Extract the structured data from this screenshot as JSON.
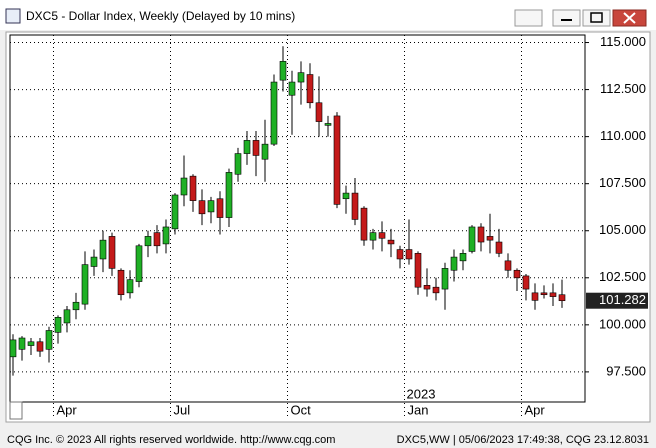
{
  "window": {
    "title": "DXC5 - Dollar Index, Weekly (Delayed by 10 mins)",
    "footer_left": "CQG Inc. © 2023 All rights reserved worldwide. http://www.cqg.com",
    "footer_right": "DXC5,WW | 05/06/2023 17:49:38, CQG 23.12.8031"
  },
  "chart_data": {
    "type": "candlestick",
    "year_label": "2023",
    "categories": [
      null,
      null,
      null,
      null,
      null,
      "Apr",
      null,
      null,
      null,
      null,
      null,
      null,
      null,
      null,
      null,
      null,
      null,
      null,
      "Jul",
      null,
      null,
      null,
      null,
      null,
      null,
      null,
      null,
      null,
      null,
      null,
      null,
      "Oct",
      null,
      null,
      null,
      null,
      null,
      null,
      null,
      null,
      null,
      null,
      null,
      null,
      "Jan",
      null,
      null,
      null,
      null,
      null,
      null,
      null,
      null,
      null,
      null,
      null,
      null,
      "Apr",
      null,
      null,
      null,
      null
    ],
    "open": [
      98.3,
      98.7,
      98.9,
      99.1,
      98.7,
      99.6,
      100.1,
      100.8,
      101.1,
      103.1,
      103.5,
      104.7,
      102.9,
      101.7,
      102.3,
      104.2,
      104.9,
      104.3,
      105.1,
      106.9,
      107.9,
      106.6,
      106.0,
      106.7,
      105.7,
      108.0,
      109.1,
      109.8,
      108.8,
      109.6,
      113.0,
      112.2,
      112.9,
      113.3,
      111.8,
      110.6,
      111.1,
      106.7,
      107.0,
      106.2,
      104.5,
      104.9,
      104.5,
      104.0,
      104.0,
      103.8,
      102.1,
      102.0,
      101.9,
      102.9,
      103.4,
      103.9,
      105.2,
      104.7,
      104.4,
      103.4,
      102.9,
      102.6,
      101.7,
      101.7,
      101.7,
      101.6
    ],
    "high": [
      99.5,
      99.4,
      99.3,
      99.3,
      99.9,
      100.5,
      101.0,
      101.7,
      103.9,
      104.0,
      105.0,
      104.9,
      103.0,
      102.9,
      104.3,
      105.0,
      105.3,
      105.6,
      107.0,
      109.0,
      108.0,
      107.2,
      106.8,
      107.1,
      108.3,
      109.4,
      110.3,
      110.3,
      110.9,
      113.3,
      114.8,
      113.5,
      114.0,
      113.9,
      113.2,
      111.1,
      111.3,
      107.4,
      107.8,
      106.3,
      105.1,
      105.5,
      105.1,
      104.2,
      105.6,
      103.9,
      103.0,
      102.5,
      103.3,
      104.0,
      104.0,
      105.3,
      105.4,
      105.9,
      105.1,
      103.8,
      103.0,
      102.7,
      102.2,
      102.1,
      102.2,
      102.4
    ],
    "low": [
      97.3,
      98.1,
      98.4,
      98.3,
      98.0,
      99.0,
      99.6,
      100.3,
      100.8,
      102.6,
      102.8,
      102.6,
      101.3,
      101.4,
      102.0,
      103.6,
      103.8,
      103.8,
      104.8,
      106.3,
      106.0,
      105.3,
      105.4,
      104.8,
      105.2,
      107.6,
      108.5,
      107.9,
      107.6,
      109.5,
      112.4,
      110.1,
      111.7,
      111.5,
      110.0,
      110.0,
      106.2,
      105.9,
      105.3,
      104.2,
      104.0,
      103.9,
      103.6,
      103.0,
      103.2,
      101.6,
      101.5,
      101.3,
      100.8,
      102.3,
      102.9,
      103.8,
      103.9,
      103.8,
      103.6,
      102.5,
      101.8,
      101.3,
      100.8,
      101.4,
      101.0,
      100.9
    ],
    "close": [
      99.2,
      99.3,
      99.1,
      98.6,
      99.7,
      100.4,
      100.8,
      101.2,
      103.2,
      103.6,
      104.5,
      103.0,
      101.6,
      102.4,
      104.2,
      104.7,
      104.2,
      105.2,
      106.9,
      107.8,
      106.6,
      105.9,
      106.6,
      105.7,
      108.1,
      109.1,
      109.8,
      109.0,
      109.6,
      112.9,
      114.0,
      112.9,
      113.4,
      111.8,
      110.8,
      110.7,
      106.4,
      107.0,
      105.6,
      104.5,
      104.9,
      104.6,
      104.3,
      103.5,
      103.5,
      102.0,
      101.9,
      101.7,
      103.0,
      103.6,
      103.8,
      105.2,
      104.4,
      104.5,
      103.8,
      102.9,
      102.5,
      101.9,
      101.3,
      101.6,
      101.5,
      101.282
    ],
    "up_color": "#1fb025",
    "down_color": "#c41a1a",
    "ylim": [
      95.9,
      115.4
    ],
    "yticks": [
      {
        "value": 97.5,
        "label": "97.500"
      },
      {
        "value": 100,
        "label": "100.000"
      },
      {
        "value": 102.5,
        "label": "102.500"
      },
      {
        "value": 105,
        "label": "105.000"
      },
      {
        "value": 107.5,
        "label": "107.500"
      },
      {
        "value": 110,
        "label": "110.000"
      },
      {
        "value": 112.5,
        "label": "112.500"
      },
      {
        "value": 115,
        "label": "115.000"
      }
    ],
    "grid": true
  }
}
